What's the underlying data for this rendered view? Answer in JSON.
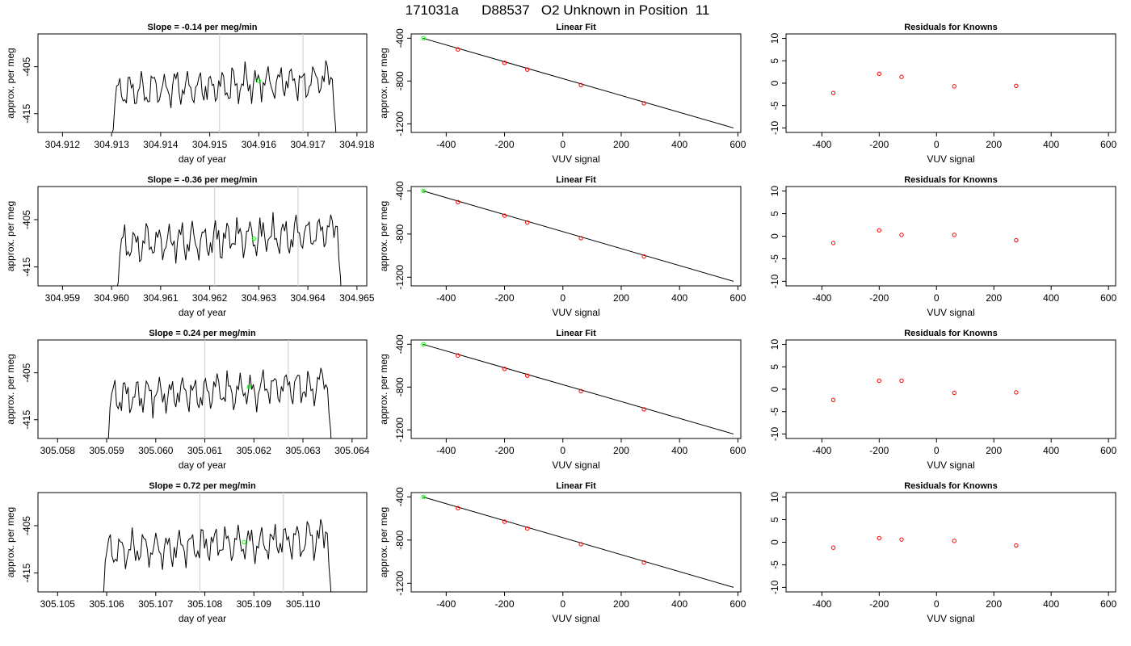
{
  "title": "171031a      D88537   O2 Unknown in Position  11",
  "colors": {
    "line": "#000000",
    "grid": "#d3d3d3",
    "known": "#ff0000",
    "unknown": "#00ff00"
  },
  "chart_data": [
    {
      "row": 1,
      "type": "line",
      "title": "Slope =  -0.14  per meg/min",
      "xlabel": "day of year",
      "ylabel": "approx. per meg",
      "xlim": [
        304.9115,
        304.9182
      ],
      "ylim": [
        -419,
        -398
      ],
      "xticks": [
        "304.912",
        "304.913",
        "304.914",
        "304.915",
        "304.916",
        "304.917",
        "304.918"
      ],
      "xtick_values": [
        304.912,
        304.913,
        304.914,
        304.915,
        304.916,
        304.917,
        304.918
      ],
      "yticks": [
        "-405",
        "-415"
      ],
      "ytick_values": [
        -405,
        -415
      ],
      "vlines": [
        304.9152,
        304.9169
      ],
      "trace": {
        "x_start": 304.9129,
        "x_end": 304.9176,
        "baseline": -409,
        "seed": 11
      },
      "marker": {
        "x": 304.916,
        "y": -408
      }
    },
    {
      "type": "line",
      "title": "Linear Fit",
      "xlabel": "VUV signal",
      "ylabel": "approx. per meg",
      "xlim": [
        -520,
        610
      ],
      "ylim": [
        -1280,
        -360
      ],
      "xticks": [
        "-400",
        "-200",
        "0",
        "200",
        "400",
        "600"
      ],
      "xtick_values": [
        -400,
        -200,
        0,
        200,
        400,
        600
      ],
      "yticks": [
        "-400",
        "-800",
        "-1200"
      ],
      "ytick_values": [
        -400,
        -800,
        -1200
      ],
      "fit_line": {
        "x": [
          -480,
          585
        ],
        "y": [
          -400,
          -1238
        ]
      },
      "known_points": {
        "x": [
          -360,
          -200,
          -122,
          62,
          278
        ],
        "y": [
          -505,
          -630,
          -693,
          -838,
          -1008
        ]
      },
      "unknown_point": {
        "x": -478,
        "y": -400
      }
    },
    {
      "type": "scatter",
      "title": "Residuals for Knowns",
      "xlabel": "VUV signal",
      "ylabel": "",
      "xlim": [
        -525,
        625
      ],
      "ylim": [
        -11,
        11
      ],
      "xticks": [
        "-400",
        "-200",
        "0",
        "200",
        "400",
        "600"
      ],
      "xtick_values": [
        -400,
        -200,
        0,
        200,
        400,
        600
      ],
      "yticks": [
        "10",
        "5",
        "0",
        "-5",
        "-10"
      ],
      "ytick_values": [
        10,
        5,
        0,
        -5,
        -10
      ],
      "x": [
        -360,
        -200,
        -122,
        62,
        278
      ],
      "y": [
        -2.2,
        2.1,
        1.4,
        -0.7,
        -0.6
      ]
    },
    {
      "row": 2,
      "type": "line",
      "title": "Slope =  -0.36  per meg/min",
      "xlabel": "day of year",
      "ylabel": "approx. per meg",
      "xlim": [
        304.9585,
        304.9652
      ],
      "ylim": [
        -419,
        -398
      ],
      "xticks": [
        "304.959",
        "304.960",
        "304.961",
        "304.962",
        "304.963",
        "304.964",
        "304.965"
      ],
      "xtick_values": [
        304.959,
        304.96,
        304.961,
        304.962,
        304.963,
        304.964,
        304.965
      ],
      "yticks": [
        "-405",
        "-415"
      ],
      "ytick_values": [
        -405,
        -415
      ],
      "vlines": [
        304.9621,
        304.9638
      ],
      "trace": {
        "x_start": 304.96,
        "x_end": 304.9647,
        "baseline": -409,
        "seed": 23
      },
      "marker": {
        "x": 304.9629,
        "y": -409
      }
    },
    {
      "type": "line",
      "title": "Linear Fit",
      "xlabel": "VUV signal",
      "ylabel": "approx. per meg",
      "xlim": [
        -520,
        610
      ],
      "ylim": [
        -1280,
        -360
      ],
      "xticks": [
        "-400",
        "-200",
        "0",
        "200",
        "400",
        "600"
      ],
      "xtick_values": [
        -400,
        -200,
        0,
        200,
        400,
        600
      ],
      "yticks": [
        "-400",
        "-800",
        "-1200"
      ],
      "ytick_values": [
        -400,
        -800,
        -1200
      ],
      "fit_line": {
        "x": [
          -480,
          585
        ],
        "y": [
          -400,
          -1238
        ]
      },
      "known_points": {
        "x": [
          -360,
          -200,
          -122,
          62,
          278
        ],
        "y": [
          -505,
          -630,
          -693,
          -838,
          -1008
        ]
      },
      "unknown_point": {
        "x": -478,
        "y": -400
      }
    },
    {
      "type": "scatter",
      "title": "Residuals for Knowns",
      "xlabel": "VUV signal",
      "ylabel": "",
      "xlim": [
        -525,
        625
      ],
      "ylim": [
        -11,
        11
      ],
      "xticks": [
        "-400",
        "-200",
        "0",
        "200",
        "400",
        "600"
      ],
      "xtick_values": [
        -400,
        -200,
        0,
        200,
        400,
        600
      ],
      "yticks": [
        "10",
        "5",
        "0",
        "-5",
        "-10"
      ],
      "ytick_values": [
        10,
        5,
        0,
        -5,
        -10
      ],
      "x": [
        -360,
        -200,
        -122,
        62,
        278
      ],
      "y": [
        -1.5,
        1.3,
        0.3,
        0.3,
        -0.9
      ]
    },
    {
      "row": 3,
      "type": "line",
      "title": "Slope =  0.24  per meg/min",
      "xlabel": "day of year",
      "ylabel": "approx. per meg",
      "xlim": [
        305.0576,
        305.0643
      ],
      "ylim": [
        -419,
        -398
      ],
      "xticks": [
        "305.058",
        "305.059",
        "305.060",
        "305.061",
        "305.062",
        "305.063",
        "305.064"
      ],
      "xtick_values": [
        305.058,
        305.059,
        305.06,
        305.061,
        305.062,
        305.063,
        305.064
      ],
      "yticks": [
        "-405",
        "-415"
      ],
      "ytick_values": [
        -405,
        -415
      ],
      "vlines": [
        305.061,
        305.0627
      ],
      "trace": {
        "x_start": 305.0589,
        "x_end": 305.0636,
        "baseline": -409,
        "seed": 37
      },
      "marker": {
        "x": 305.0619,
        "y": -408
      }
    },
    {
      "type": "line",
      "title": "Linear Fit",
      "xlabel": "VUV signal",
      "ylabel": "approx. per meg",
      "xlim": [
        -520,
        610
      ],
      "ylim": [
        -1280,
        -360
      ],
      "xticks": [
        "-400",
        "-200",
        "0",
        "200",
        "400",
        "600"
      ],
      "xtick_values": [
        -400,
        -200,
        0,
        200,
        400,
        600
      ],
      "yticks": [
        "-400",
        "-800",
        "-1200"
      ],
      "ytick_values": [
        -400,
        -800,
        -1200
      ],
      "fit_line": {
        "x": [
          -480,
          585
        ],
        "y": [
          -400,
          -1238
        ]
      },
      "known_points": {
        "x": [
          -360,
          -200,
          -122,
          62,
          278
        ],
        "y": [
          -505,
          -630,
          -693,
          -838,
          -1008
        ]
      },
      "unknown_point": {
        "x": -478,
        "y": -400
      }
    },
    {
      "type": "scatter",
      "title": "Residuals for Knowns",
      "xlabel": "VUV signal",
      "ylabel": "",
      "xlim": [
        -525,
        625
      ],
      "ylim": [
        -11,
        11
      ],
      "xticks": [
        "-400",
        "-200",
        "0",
        "200",
        "400",
        "600"
      ],
      "xtick_values": [
        -400,
        -200,
        0,
        200,
        400,
        600
      ],
      "yticks": [
        "10",
        "5",
        "0",
        "-5",
        "-10"
      ],
      "ytick_values": [
        10,
        5,
        0,
        -5,
        -10
      ],
      "x": [
        -360,
        -200,
        -122,
        62,
        278
      ],
      "y": [
        -2.4,
        1.9,
        1.9,
        -0.8,
        -0.7
      ]
    },
    {
      "row": 4,
      "type": "line",
      "title": "Slope =  0.72  per meg/min",
      "xlabel": "day of year",
      "ylabel": "approx. per meg",
      "xlim": [
        305.1046,
        305.1113
      ],
      "ylim": [
        -419,
        -398
      ],
      "xticks": [
        "305.105",
        "305.106",
        "305.107",
        "305.108",
        "305.109",
        "305.110"
      ],
      "xtick_values": [
        305.105,
        305.106,
        305.107,
        305.108,
        305.109,
        305.11
      ],
      "yticks": [
        "-405",
        "-415"
      ],
      "ytick_values": [
        -405,
        -415
      ],
      "vlines": [
        305.1079,
        305.1096
      ],
      "trace": {
        "x_start": 305.1058,
        "x_end": 305.1106,
        "baseline": -409,
        "seed": 53
      },
      "marker": {
        "x": 305.1088,
        "y": -408.5
      }
    },
    {
      "type": "line",
      "title": "Linear Fit",
      "xlabel": "VUV signal",
      "ylabel": "approx. per meg",
      "xlim": [
        -520,
        610
      ],
      "ylim": [
        -1280,
        -360
      ],
      "xticks": [
        "-400",
        "-200",
        "0",
        "200",
        "400",
        "600"
      ],
      "xtick_values": [
        -400,
        -200,
        0,
        200,
        400,
        600
      ],
      "yticks": [
        "-400",
        "-800",
        "-1200"
      ],
      "ytick_values": [
        -400,
        -800,
        -1200
      ],
      "fit_line": {
        "x": [
          -480,
          585
        ],
        "y": [
          -400,
          -1238
        ]
      },
      "known_points": {
        "x": [
          -360,
          -200,
          -122,
          62,
          278
        ],
        "y": [
          -505,
          -630,
          -693,
          -838,
          -1008
        ]
      },
      "unknown_point": {
        "x": -478,
        "y": -400
      }
    },
    {
      "type": "scatter",
      "title": "Residuals for Knowns",
      "xlabel": "VUV signal",
      "ylabel": "",
      "xlim": [
        -525,
        625
      ],
      "ylim": [
        -11,
        11
      ],
      "xticks": [
        "-400",
        "-200",
        "0",
        "200",
        "400",
        "600"
      ],
      "xtick_values": [
        -400,
        -200,
        0,
        200,
        400,
        600
      ],
      "yticks": [
        "10",
        "5",
        "0",
        "-5",
        "-10"
      ],
      "ytick_values": [
        10,
        5,
        0,
        -5,
        -10
      ],
      "x": [
        -360,
        -200,
        -122,
        62,
        278
      ],
      "y": [
        -1.2,
        0.9,
        0.6,
        0.3,
        -0.7
      ]
    }
  ]
}
